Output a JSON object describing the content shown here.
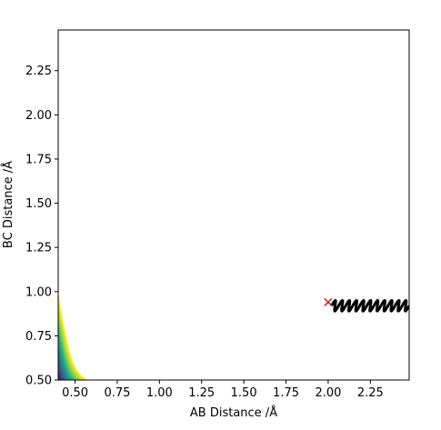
{
  "chart_data": {
    "type": "contour",
    "xlabel": "AB Distance /Å",
    "ylabel": "BC Distance /Å",
    "xlim": [
      0.4,
      2.48
    ],
    "ylim": [
      0.5,
      2.48
    ],
    "x_ticks": [
      0.5,
      0.75,
      1.0,
      1.25,
      1.5,
      1.75,
      2.0,
      2.25
    ],
    "x_tick_labels": [
      "0.50",
      "0.75",
      "1.00",
      "1.25",
      "1.50",
      "1.75",
      "2.00",
      "2.25"
    ],
    "y_ticks": [
      0.5,
      0.75,
      1.0,
      1.25,
      1.5,
      1.75,
      2.0,
      2.25
    ],
    "y_tick_labels": [
      "0.50",
      "0.75",
      "1.00",
      "1.25",
      "1.50",
      "1.75",
      "2.00",
      "2.25"
    ],
    "grid": false,
    "colormap": [
      "#440154",
      "#472c7a",
      "#3b528b",
      "#2c728e",
      "#21918c",
      "#28ae80",
      "#5ec962",
      "#addc30",
      "#fde725"
    ],
    "contour_levels": 25,
    "trajectory": {
      "color": "#000000",
      "start": [
        2.02,
        0.92
      ],
      "end": [
        2.48,
        0.92
      ],
      "oscillation_amplitude": 0.03,
      "oscillations": 11
    },
    "start_marker": {
      "x": 2.0,
      "y": 0.94,
      "symbol": "x",
      "color": "#d62728"
    }
  }
}
